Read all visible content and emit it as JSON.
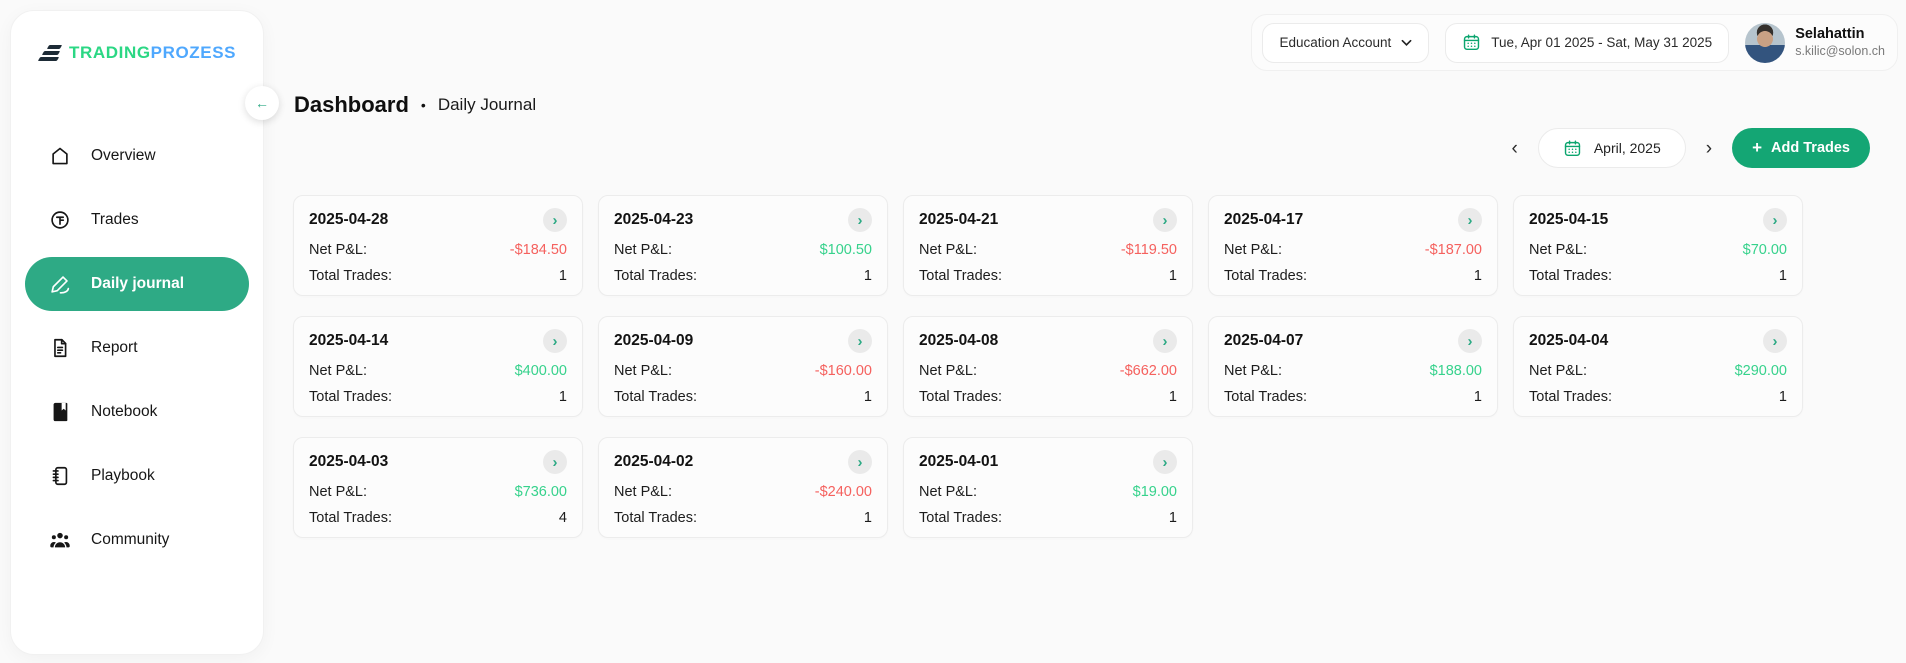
{
  "colors": {
    "accent": "#2EAA85",
    "button_green": "#14A674",
    "calendar_green": "#0BA56E",
    "positive": "#36D28C",
    "negative": "#F5615E",
    "logo_green": "#2BD784",
    "logo_blue": "#4FA8FE"
  },
  "logo": {
    "part1": "TRADING",
    "part2": "PROZESS"
  },
  "icons": {
    "collapse": "←",
    "prev": "‹",
    "next": "›",
    "card_chevron": "›",
    "add_plus": "+"
  },
  "sidebar": {
    "items": [
      {
        "label": "Overview",
        "icon": "home-icon",
        "active": false
      },
      {
        "label": "Trades",
        "icon": "trades-icon",
        "active": false
      },
      {
        "label": "Daily journal",
        "icon": "journal-pen-icon",
        "active": true
      },
      {
        "label": "Report",
        "icon": "report-icon",
        "active": false
      },
      {
        "label": "Notebook",
        "icon": "notebook-icon",
        "active": false
      },
      {
        "label": "Playbook",
        "icon": "playbook-icon",
        "active": false
      },
      {
        "label": "Community",
        "icon": "community-icon",
        "active": false
      }
    ]
  },
  "topbar": {
    "account_label": "Education Account",
    "date_range": "Tue, Apr 01 2025 - Sat, May 31 2025",
    "user_name": "Selahattin",
    "user_email": "s.kilic@solon.ch"
  },
  "breadcrumb": {
    "title": "Dashboard",
    "separator": "•",
    "subtitle": "Daily Journal"
  },
  "toolbar": {
    "month_label": "April, 2025",
    "add_label": "Add Trades"
  },
  "cards": {
    "net_label": "Net P&L:",
    "trades_label": "Total Trades:",
    "items": [
      {
        "date": "2025-04-28",
        "net": "-$184.50",
        "positive": false,
        "trades": "1"
      },
      {
        "date": "2025-04-23",
        "net": "$100.50",
        "positive": true,
        "trades": "1"
      },
      {
        "date": "2025-04-21",
        "net": "-$119.50",
        "positive": false,
        "trades": "1"
      },
      {
        "date": "2025-04-17",
        "net": "-$187.00",
        "positive": false,
        "trades": "1"
      },
      {
        "date": "2025-04-15",
        "net": "$70.00",
        "positive": true,
        "trades": "1"
      },
      {
        "date": "2025-04-14",
        "net": "$400.00",
        "positive": true,
        "trades": "1"
      },
      {
        "date": "2025-04-09",
        "net": "-$160.00",
        "positive": false,
        "trades": "1"
      },
      {
        "date": "2025-04-08",
        "net": "-$662.00",
        "positive": false,
        "trades": "1"
      },
      {
        "date": "2025-04-07",
        "net": "$188.00",
        "positive": true,
        "trades": "1"
      },
      {
        "date": "2025-04-04",
        "net": "$290.00",
        "positive": true,
        "trades": "1"
      },
      {
        "date": "2025-04-03",
        "net": "$736.00",
        "positive": true,
        "trades": "4"
      },
      {
        "date": "2025-04-02",
        "net": "-$240.00",
        "positive": false,
        "trades": "1"
      },
      {
        "date": "2025-04-01",
        "net": "$19.00",
        "positive": true,
        "trades": "1"
      }
    ]
  }
}
